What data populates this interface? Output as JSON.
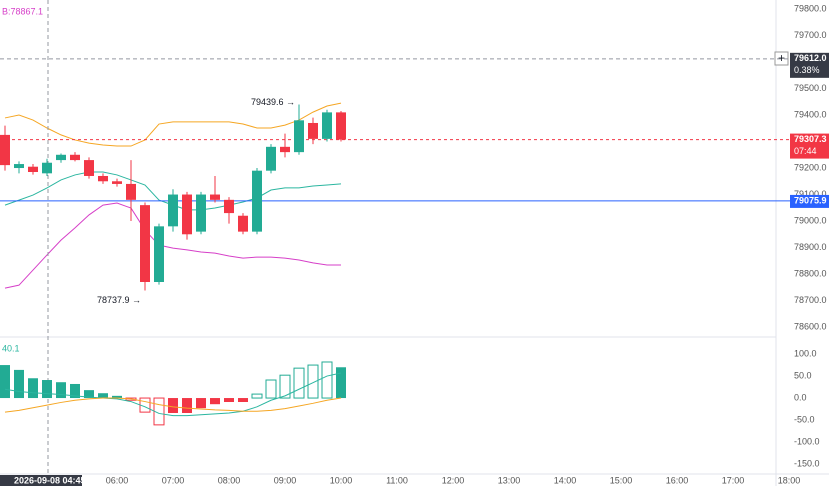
{
  "chart_data": {
    "type": "candlestick",
    "legend_top": "B:78867.1",
    "indicator_legend": "40.1",
    "crosshair_time": "2026-09-08 04:45",
    "up_color": "#22ab94",
    "down_color": "#f23645",
    "ylim": [
      78570,
      79834
    ],
    "yticks": [
      {
        "value": 79800,
        "label": "79800.0"
      },
      {
        "value": 79700,
        "label": "79700.0"
      },
      {
        "value": 79500,
        "label": "79500.0"
      },
      {
        "value": 79400,
        "label": "79400.0"
      },
      {
        "value": 79200,
        "label": "79200.0"
      },
      {
        "value": 79100,
        "label": "79100.0"
      },
      {
        "value": 79000,
        "label": "79000.0"
      },
      {
        "value": 78900,
        "label": "78900.0"
      },
      {
        "value": 78800,
        "label": "78800.0"
      },
      {
        "value": 78700,
        "label": "78700.0"
      },
      {
        "value": 78600,
        "label": "78600.0"
      }
    ],
    "xticks": [
      "06:00",
      "07:00",
      "08:00",
      "09:00",
      "10:00",
      "11:00",
      "12:00",
      "13:00",
      "14:00",
      "15:00",
      "16:00",
      "17:00",
      "18:00"
    ],
    "open": [
      79325,
      79200,
      79205,
      79180,
      79230,
      79250,
      79230,
      79170,
      79150,
      79140,
      79060,
      78770,
      78980,
      79100,
      78960,
      79100,
      79080,
      79020,
      78960,
      79190,
      79280,
      79260,
      79370,
      79310,
      79410
    ],
    "high": [
      79360,
      79225,
      79215,
      79235,
      79255,
      79260,
      79240,
      79180,
      79160,
      79230,
      79070,
      78990,
      79120,
      79110,
      79110,
      79170,
      79090,
      79030,
      79200,
      79290,
      79330,
      79439.6,
      79390,
      79420,
      79415
    ],
    "low": [
      79190,
      79180,
      79175,
      79170,
      79220,
      79225,
      79160,
      79140,
      79130,
      79000,
      78737.9,
      78760,
      78960,
      78930,
      78950,
      79070,
      78990,
      78950,
      78950,
      79180,
      79240,
      79250,
      79290,
      79300,
      79300
    ],
    "close": [
      79211,
      79215,
      79185,
      79220,
      79250,
      79230,
      79170,
      79150,
      79140,
      79080,
      78770,
      78980,
      79100,
      78950,
      79100,
      79080,
      79030,
      78960,
      79190,
      79280,
      79260,
      79380,
      79310,
      79410,
      79307.3
    ],
    "bands": [
      {
        "name": "upper",
        "color": "#f5a623",
        "values": [
          79389,
          79400,
          79381,
          79351,
          79325,
          79306,
          79294,
          79287,
          79283,
          79283,
          79306,
          79366,
          79374,
          79374,
          79374,
          79374,
          79374,
          79366,
          79351,
          79351,
          79362,
          79381,
          79411,
          79434,
          79445
        ]
      },
      {
        "name": "middle",
        "color": "#2bb6a0",
        "values": [
          79060,
          79079,
          79098,
          79125,
          79155,
          79174,
          79185,
          79185,
          79174,
          79155,
          79136,
          79079,
          79060,
          79042,
          79042,
          79049,
          79060,
          79072,
          79087,
          79117,
          79125,
          79125,
          79132,
          79136,
          79140
        ]
      },
      {
        "name": "lower",
        "color": "#d63fc8",
        "values": [
          78747,
          78758,
          78815,
          78872,
          78928,
          78974,
          79023,
          79060,
          79068,
          79049,
          78966,
          78909,
          78898,
          78891,
          78883,
          78879,
          78868,
          78860,
          78864,
          78864,
          78860,
          78853,
          78842,
          78834,
          78834
        ]
      }
    ],
    "annotations": [
      {
        "text": "79439.6 →",
        "index": 21,
        "price": 79439.6
      },
      {
        "text": "78737.9 →",
        "index": 10,
        "price": 78737.9
      }
    ],
    "price_tags": [
      {
        "label": "79612.0",
        "sub": "0.38%",
        "value": 79612,
        "color": "#363a45",
        "line": "dashed-gray"
      },
      {
        "label": "79307.3",
        "sub": "07:44",
        "value": 79307.3,
        "color": "#f23645",
        "line": "dashed-red"
      },
      {
        "label": "79075.9",
        "value": 79075.9,
        "color": "#2962ff",
        "line": "solid-blue"
      }
    ],
    "y2lim": [
      -175,
      132
    ],
    "y2ticks": [
      {
        "value": 100,
        "label": "100.0"
      },
      {
        "value": 50,
        "label": "50.0"
      },
      {
        "value": 0,
        "label": "0.0"
      },
      {
        "value": -50,
        "label": "-50.0"
      },
      {
        "value": -100,
        "label": "-100.0"
      },
      {
        "value": -150,
        "label": "-150.0"
      }
    ],
    "histogram": [
      75,
      64,
      45,
      41,
      36,
      32,
      18,
      11,
      5,
      -5,
      -32,
      -61,
      -34,
      -34,
      -23,
      -14,
      -9,
      -9,
      9,
      41,
      52,
      68,
      75,
      82,
      70
    ],
    "hollow": [
      false,
      false,
      false,
      false,
      false,
      false,
      false,
      false,
      false,
      true,
      true,
      true,
      false,
      false,
      false,
      false,
      false,
      false,
      true,
      true,
      true,
      true,
      true,
      true,
      false
    ],
    "indicator_lines": [
      {
        "name": "fast",
        "color": "#2bb6a0",
        "values": [
          20,
          15,
          12,
          10,
          8,
          5,
          2,
          0,
          -2,
          -8,
          -20,
          -35,
          -40,
          -40,
          -38,
          -36,
          -34,
          -30,
          -20,
          -5,
          5,
          20,
          35,
          50,
          57
        ]
      },
      {
        "name": "slow",
        "color": "#f5a623",
        "values": [
          -32,
          -28,
          -22,
          -16,
          -10,
          -5,
          -2,
          0,
          0,
          -2,
          -8,
          -15,
          -20,
          -23,
          -25,
          -27,
          -28,
          -30,
          -30,
          -28,
          -24,
          -18,
          -12,
          -5,
          0
        ]
      }
    ]
  }
}
